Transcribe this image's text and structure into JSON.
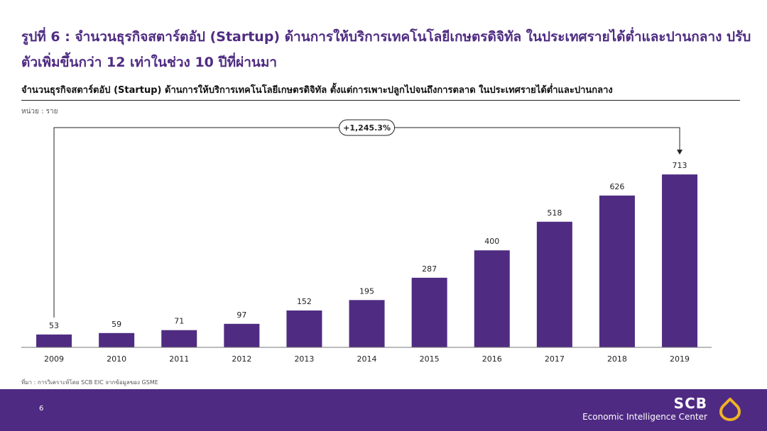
{
  "header": {
    "headline": "รูปที่ 6 : จำนวนธุรกิจสตาร์ตอัป (Startup) ด้านการให้บริการเทคโนโลยีเกษตรดิจิทัล ในประเทศรายได้ต่ำและปานกลาง ปรับตัวเพิ่มขึ้นกว่า 12 เท่าในช่วง 10 ปีที่ผ่านมา",
    "chart_title": "จำนวนธุรกิจสตาร์ตอัป (Startup) ด้านการให้บริการเทคโนโลยีเกษตรดิจิทัล ตั้งแต่การเพาะปลูกไปจนถึงการตลาด ในประเทศรายได้ต่ำและปานกลาง",
    "unit": "หน่วย : ราย"
  },
  "chart_data": {
    "type": "bar",
    "title": "จำนวนธุรกิจสตาร์ตอัป (Startup) ด้านการให้บริการเทคโนโลยีเกษตรดิจิทัล ตั้งแต่การเพาะปลูกไปจนถึงการตลาด ในประเทศรายได้ต่ำและปานกลาง",
    "ylabel": "หน่วย : ราย",
    "categories": [
      "2009",
      "2010",
      "2011",
      "2012",
      "2013",
      "2014",
      "2015",
      "2016",
      "2017",
      "2018",
      "2019"
    ],
    "values": [
      53,
      59,
      71,
      97,
      152,
      195,
      287,
      400,
      518,
      626,
      713
    ],
    "ylim": [
      0,
      760
    ],
    "grid": false,
    "bar_color": "#4f2c82",
    "annotation": {
      "text": "+1,245.3%",
      "from": "2009",
      "to": "2019"
    }
  },
  "footer": {
    "source": "ที่มา : การวิเคราะห์โดย SCB EIC จากข้อมูลของ GSME",
    "page_number": "6",
    "brand_name": "SCB",
    "brand_sub": "Economic Intelligence Center",
    "logo_icon": "scb-lotus-icon",
    "background": "#4f2a83",
    "logo_color": "#f0b323"
  }
}
